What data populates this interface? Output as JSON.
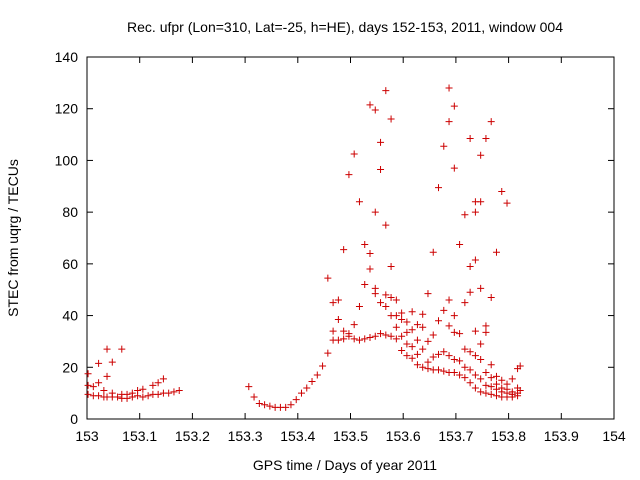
{
  "chart_data": {
    "type": "scatter",
    "title": "Rec. ufpr (Lon=310, Lat=-25, h=HE), days 152-153, 2011, window 004",
    "xlabel": "GPS time / Days of year 2011",
    "ylabel": "STEC from uqrg / TECUs",
    "xlim": [
      153,
      154
    ],
    "ylim": [
      0,
      140
    ],
    "xticks": [
      "153",
      "153.1",
      "153.2",
      "153.3",
      "153.4",
      "153.5",
      "153.6",
      "153.7",
      "153.8",
      "153.9",
      "154"
    ],
    "yticks": [
      "0",
      "20",
      "40",
      "60",
      "80",
      "100",
      "120",
      "140"
    ],
    "grid": false,
    "marker": "+",
    "color": "#cc0000",
    "series": [
      {
        "name": "STEC",
        "points": [
          [
            153.002,
            17.5
          ],
          [
            153.002,
            13.0
          ],
          [
            153.002,
            9.5
          ],
          [
            153.012,
            12.5
          ],
          [
            153.012,
            9.0
          ],
          [
            153.022,
            21.5
          ],
          [
            153.022,
            14.0
          ],
          [
            153.022,
            9.0
          ],
          [
            153.032,
            11.0
          ],
          [
            153.032,
            8.5
          ],
          [
            153.038,
            27.0
          ],
          [
            153.038,
            16.5
          ],
          [
            153.038,
            8.5
          ],
          [
            153.048,
            22.0
          ],
          [
            153.048,
            10.0
          ],
          [
            153.048,
            8.5
          ],
          [
            153.058,
            8.5
          ],
          [
            153.066,
            27.0
          ],
          [
            153.066,
            9.5
          ],
          [
            153.066,
            8.0
          ],
          [
            153.076,
            9.5
          ],
          [
            153.076,
            8.0
          ],
          [
            153.086,
            10.0
          ],
          [
            153.086,
            8.5
          ],
          [
            153.096,
            11.0
          ],
          [
            153.096,
            9.0
          ],
          [
            153.106,
            11.5
          ],
          [
            153.106,
            8.5
          ],
          [
            153.116,
            9.0
          ],
          [
            153.125,
            13.0
          ],
          [
            153.125,
            9.5
          ],
          [
            153.135,
            14.0
          ],
          [
            153.135,
            9.5
          ],
          [
            153.145,
            15.5
          ],
          [
            153.145,
            10.0
          ],
          [
            153.155,
            10.0
          ],
          [
            153.165,
            10.5
          ],
          [
            153.175,
            11.0
          ],
          [
            153.307,
            12.5
          ],
          [
            153.317,
            8.5
          ],
          [
            153.327,
            6.0
          ],
          [
            153.337,
            5.5
          ],
          [
            153.347,
            5.0
          ],
          [
            153.357,
            4.5
          ],
          [
            153.367,
            4.5
          ],
          [
            153.377,
            4.5
          ],
          [
            153.387,
            5.5
          ],
          [
            153.397,
            7.5
          ],
          [
            153.407,
            10.0
          ],
          [
            153.417,
            12.0
          ],
          [
            153.427,
            14.5
          ],
          [
            153.437,
            17.0
          ],
          [
            153.447,
            20.5
          ],
          [
            153.457,
            25.5
          ],
          [
            153.457,
            54.5
          ],
          [
            153.467,
            30.5
          ],
          [
            153.467,
            34.0
          ],
          [
            153.467,
            45.0
          ],
          [
            153.477,
            30.5
          ],
          [
            153.477,
            38.5
          ],
          [
            153.477,
            46.0
          ],
          [
            153.487,
            31.0
          ],
          [
            153.487,
            34.0
          ],
          [
            153.487,
            65.5
          ],
          [
            153.497,
            32.0
          ],
          [
            153.497,
            33.0
          ],
          [
            153.497,
            94.5
          ],
          [
            153.507,
            31.0
          ],
          [
            153.507,
            36.5
          ],
          [
            153.507,
            102.5
          ],
          [
            153.517,
            30.5
          ],
          [
            153.517,
            43.5
          ],
          [
            153.517,
            84.0
          ],
          [
            153.527,
            31.0
          ],
          [
            153.527,
            52.0
          ],
          [
            153.527,
            67.5
          ],
          [
            153.537,
            31.5
          ],
          [
            153.537,
            58.0
          ],
          [
            153.537,
            64.0
          ],
          [
            153.537,
            121.5
          ],
          [
            153.547,
            32.0
          ],
          [
            153.547,
            48.5
          ],
          [
            153.547,
            50.5
          ],
          [
            153.547,
            80.0
          ],
          [
            153.547,
            119.5
          ],
          [
            153.557,
            33.0
          ],
          [
            153.557,
            45.0
          ],
          [
            153.557,
            96.5
          ],
          [
            153.557,
            107.0
          ],
          [
            153.567,
            32.5
          ],
          [
            153.567,
            43.5
          ],
          [
            153.567,
            48.0
          ],
          [
            153.567,
            75.0
          ],
          [
            153.567,
            127.0
          ],
          [
            153.577,
            32.0
          ],
          [
            153.577,
            40.0
          ],
          [
            153.577,
            47.0
          ],
          [
            153.577,
            59.0
          ],
          [
            153.577,
            116.0
          ],
          [
            153.587,
            31.0
          ],
          [
            153.587,
            35.5
          ],
          [
            153.587,
            40.0
          ],
          [
            153.587,
            46.0
          ],
          [
            153.597,
            26.5
          ],
          [
            153.597,
            32.0
          ],
          [
            153.597,
            38.5
          ],
          [
            153.597,
            41.0
          ],
          [
            153.607,
            24.5
          ],
          [
            153.607,
            29.0
          ],
          [
            153.607,
            33.5
          ],
          [
            153.607,
            37.5
          ],
          [
            153.617,
            23.5
          ],
          [
            153.617,
            28.0
          ],
          [
            153.617,
            34.5
          ],
          [
            153.617,
            41.5
          ],
          [
            153.627,
            21.0
          ],
          [
            153.627,
            25.0
          ],
          [
            153.627,
            30.5
          ],
          [
            153.627,
            36.5
          ],
          [
            153.637,
            20.0
          ],
          [
            153.637,
            27.0
          ],
          [
            153.637,
            35.5
          ],
          [
            153.637,
            40.5
          ],
          [
            153.647,
            19.5
          ],
          [
            153.647,
            22.0
          ],
          [
            153.647,
            30.0
          ],
          [
            153.647,
            48.5
          ],
          [
            153.657,
            19.0
          ],
          [
            153.657,
            24.0
          ],
          [
            153.657,
            32.5
          ],
          [
            153.657,
            64.5
          ],
          [
            153.667,
            19.0
          ],
          [
            153.667,
            25.0
          ],
          [
            153.667,
            38.0
          ],
          [
            153.667,
            89.5
          ],
          [
            153.677,
            18.5
          ],
          [
            153.677,
            26.0
          ],
          [
            153.677,
            42.0
          ],
          [
            153.677,
            105.5
          ],
          [
            153.687,
            18.0
          ],
          [
            153.687,
            24.5
          ],
          [
            153.687,
            36.0
          ],
          [
            153.687,
            46.0
          ],
          [
            153.687,
            115.0
          ],
          [
            153.687,
            128.0
          ],
          [
            153.697,
            18.0
          ],
          [
            153.697,
            23.0
          ],
          [
            153.697,
            33.5
          ],
          [
            153.697,
            40.0
          ],
          [
            153.697,
            97.0
          ],
          [
            153.697,
            121.0
          ],
          [
            153.707,
            17.0
          ],
          [
            153.707,
            22.5
          ],
          [
            153.707,
            33.0
          ],
          [
            153.707,
            67.5
          ],
          [
            153.717,
            16.0
          ],
          [
            153.717,
            20.0
          ],
          [
            153.717,
            27.0
          ],
          [
            153.717,
            45.0
          ],
          [
            153.717,
            79.0
          ],
          [
            153.727,
            14.0
          ],
          [
            153.727,
            19.0
          ],
          [
            153.727,
            26.0
          ],
          [
            153.727,
            49.0
          ],
          [
            153.727,
            59.0
          ],
          [
            153.727,
            108.5
          ],
          [
            153.737,
            12.0
          ],
          [
            153.737,
            17.0
          ],
          [
            153.737,
            24.5
          ],
          [
            153.737,
            34.0
          ],
          [
            153.737,
            61.5
          ],
          [
            153.737,
            80.0
          ],
          [
            153.737,
            84.0
          ],
          [
            153.747,
            10.5
          ],
          [
            153.747,
            15.5
          ],
          [
            153.747,
            23.0
          ],
          [
            153.747,
            29.0
          ],
          [
            153.747,
            50.5
          ],
          [
            153.747,
            84.0
          ],
          [
            153.747,
            102.0
          ],
          [
            153.757,
            10.0
          ],
          [
            153.757,
            13.0
          ],
          [
            153.757,
            18.0
          ],
          [
            153.757,
            33.5
          ],
          [
            153.757,
            36.0
          ],
          [
            153.757,
            108.5
          ],
          [
            153.767,
            9.5
          ],
          [
            153.767,
            12.5
          ],
          [
            153.767,
            16.0
          ],
          [
            153.767,
            21.0
          ],
          [
            153.767,
            47.0
          ],
          [
            153.767,
            115.0
          ],
          [
            153.777,
            9.0
          ],
          [
            153.777,
            11.5
          ],
          [
            153.777,
            13.5
          ],
          [
            153.777,
            16.5
          ],
          [
            153.777,
            64.5
          ],
          [
            153.787,
            8.5
          ],
          [
            153.787,
            10.5
          ],
          [
            153.787,
            12.0
          ],
          [
            153.787,
            15.0
          ],
          [
            153.787,
            88.0
          ],
          [
            153.797,
            8.5
          ],
          [
            153.797,
            10.0
          ],
          [
            153.797,
            11.5
          ],
          [
            153.797,
            13.5
          ],
          [
            153.797,
            83.5
          ],
          [
            153.807,
            8.5
          ],
          [
            153.807,
            9.5
          ],
          [
            153.807,
            10.5
          ],
          [
            153.807,
            15.5
          ],
          [
            153.817,
            9.0
          ],
          [
            153.817,
            10.0
          ],
          [
            153.817,
            12.0
          ],
          [
            153.817,
            19.5
          ],
          [
            153.822,
            11.0
          ],
          [
            153.822,
            20.5
          ]
        ]
      }
    ]
  }
}
